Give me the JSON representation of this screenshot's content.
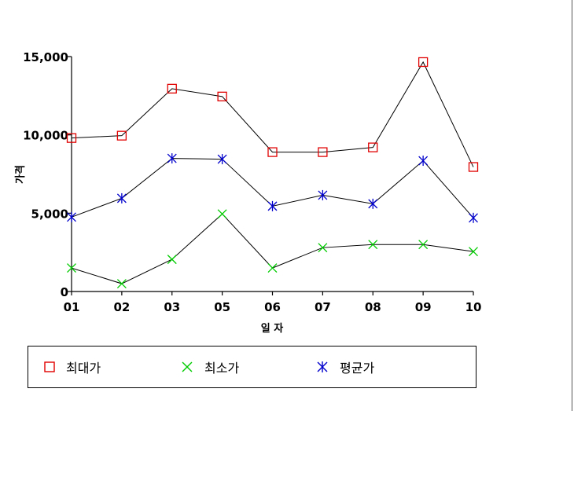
{
  "chart_data": {
    "type": "line",
    "title": "",
    "xlabel": "일 자",
    "ylabel": "가격",
    "categories": [
      "01",
      "02",
      "03",
      "05",
      "06",
      "07",
      "08",
      "09",
      "10"
    ],
    "ylim": [
      0,
      15000
    ],
    "yticks": [
      0,
      5000,
      10000,
      15000
    ],
    "ytick_labels": [
      "0",
      "5,000",
      "10,000",
      "15,000"
    ],
    "grid": false,
    "legend_position": "bottom",
    "series": [
      {
        "name": "최대가",
        "marker": "square",
        "color": "#e00000",
        "values": [
          9800,
          9950,
          12950,
          12450,
          8900,
          8900,
          9200,
          14650,
          7950
        ]
      },
      {
        "name": "최소가",
        "marker": "x",
        "color": "#00cc00",
        "values": [
          1500,
          500,
          2050,
          4950,
          1500,
          2800,
          3000,
          3000,
          2550
        ]
      },
      {
        "name": "평균가",
        "marker": "asterisk",
        "color": "#0000cc",
        "values": [
          4750,
          5950,
          8500,
          8450,
          5450,
          6150,
          5600,
          8350,
          4700
        ]
      }
    ]
  }
}
